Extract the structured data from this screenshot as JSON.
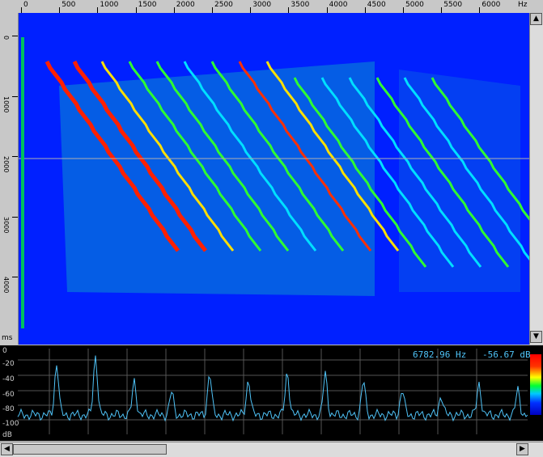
{
  "top_ruler": {
    "labels": [
      "0",
      "500",
      "1000",
      "1500",
      "2000",
      "2500",
      "3000",
      "3500",
      "4000",
      "4500",
      "5000",
      "5500",
      "6000"
    ],
    "unit": "Hz"
  },
  "left_ruler": {
    "labels": [
      "0",
      "1000",
      "2000",
      "3000",
      "4000"
    ],
    "unit": "ms"
  },
  "readout": {
    "frequency": "6782.96 Hz",
    "level": "-56.67 dB"
  },
  "power_axis": {
    "labels": [
      "0",
      "-20",
      "-40",
      "-60",
      "-80",
      "-100"
    ],
    "unit": "dB"
  },
  "colors": {
    "spectrogram_bg": "#0020ff",
    "trace": "#4fc3f7",
    "grid": "#555555"
  },
  "icons": [
    "scroll-up-arrow-icon",
    "scroll-down-arrow-icon",
    "scroll-left-arrow-icon",
    "scroll-right-arrow-icon"
  ]
}
